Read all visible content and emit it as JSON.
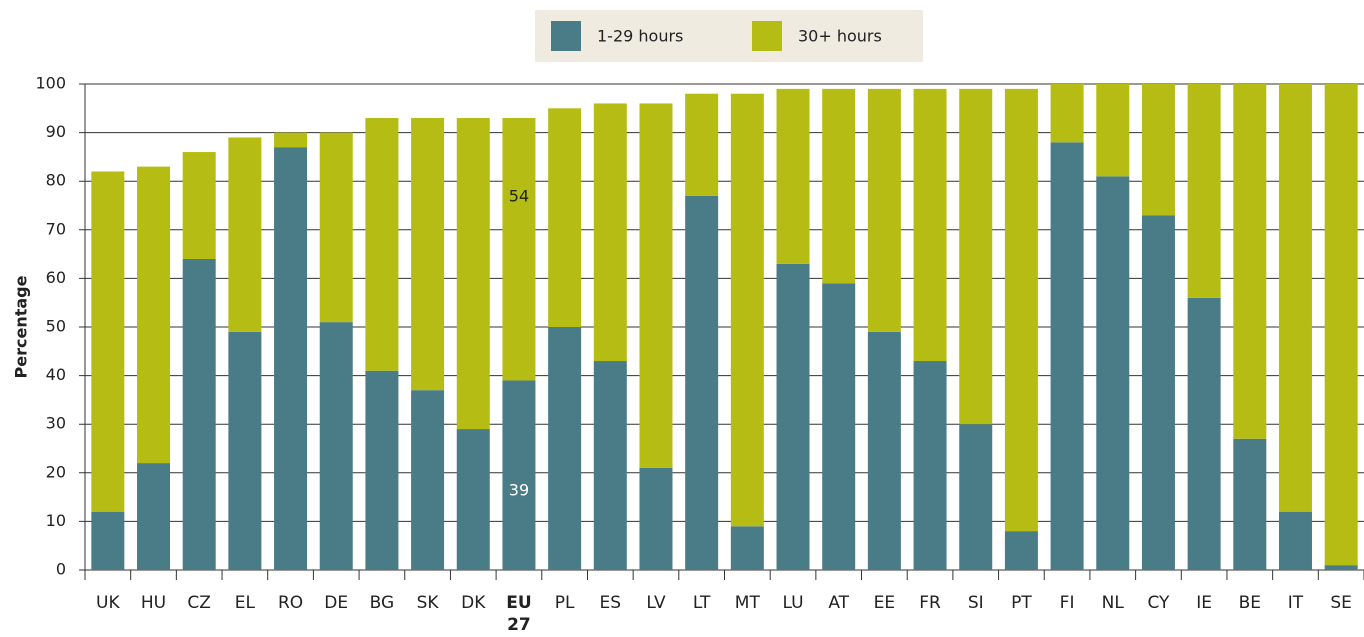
{
  "chart_data": {
    "type": "stacked_bar",
    "y_label": "Percentage",
    "categories": [
      "UK",
      "HU",
      "CZ",
      "EL",
      "RO",
      "DE",
      "BG",
      "SK",
      "DK",
      "EU 27",
      "PL",
      "ES",
      "LV",
      "LT",
      "MT",
      "LU",
      "AT",
      "EE",
      "FR",
      "SI",
      "PT",
      "FI",
      "NL",
      "CY",
      "IE",
      "BE",
      "IT",
      "SE"
    ],
    "series": [
      {
        "name": "1-29 hours",
        "color": "#4a7c87",
        "values": [
          12,
          22,
          64,
          49,
          87,
          51,
          41,
          37,
          29,
          39,
          50,
          43,
          21,
          77,
          9,
          63,
          59,
          49,
          43,
          30,
          8,
          88,
          81,
          73,
          56,
          27,
          12,
          1
        ]
      },
      {
        "name": "30+ hours",
        "color": "#b5bd14",
        "values": [
          70,
          61,
          22,
          40,
          3,
          39,
          52,
          56,
          64,
          54,
          45,
          53,
          75,
          21,
          89,
          36,
          40,
          50,
          56,
          69,
          91,
          12,
          19,
          27,
          44,
          73,
          88,
          99
        ]
      }
    ],
    "highlight": "EU 27",
    "ylim": [
      0,
      100
    ],
    "yticks": [
      0,
      10,
      20,
      30,
      40,
      50,
      60,
      70,
      80,
      90,
      100
    ],
    "grid": true
  }
}
